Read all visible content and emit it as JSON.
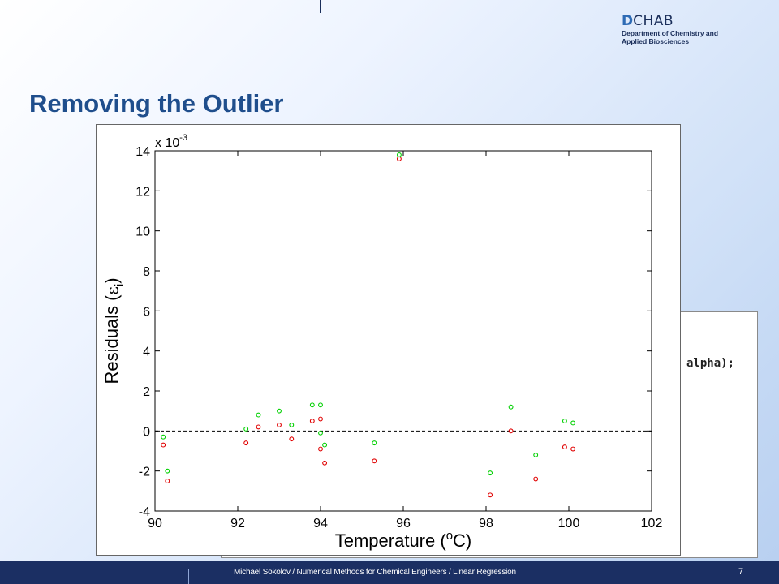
{
  "logo": {
    "letter": "D",
    "name": "CHAB",
    "dept_line1": "Department of Chemistry and",
    "dept_line2": "Applied Biosciences"
  },
  "slide": {
    "title": "Removing the Outlier",
    "code_snippet": "alpha);",
    "footer_text": "Michael Sokolov / Numerical Methods for Chemical Engineers / Linear Regression",
    "page_number": "7"
  },
  "chart_data": {
    "type": "scatter",
    "xlabel": "Temperature (",
    "xlabel_sup": "o",
    "xlabel_unit": "C)",
    "ylabel": "Residuals (",
    "ylabel_symbol": "ε",
    "ylabel_sub": "i",
    "ylabel_close": ")",
    "multiplier_text": "x 10",
    "multiplier_exp": "-3",
    "xlim": [
      90,
      102
    ],
    "ylim": [
      -4,
      14
    ],
    "xticks": [
      90,
      92,
      94,
      96,
      98,
      100,
      102
    ],
    "yticks": [
      -4,
      -2,
      0,
      2,
      4,
      6,
      8,
      10,
      12,
      14
    ],
    "reference_line_y": 0,
    "series": [
      {
        "color": "#e00000",
        "points": [
          {
            "x": 90.2,
            "y": -0.7
          },
          {
            "x": 90.3,
            "y": -2.5
          },
          {
            "x": 92.2,
            "y": -0.6
          },
          {
            "x": 92.5,
            "y": 0.2
          },
          {
            "x": 93.0,
            "y": 0.3
          },
          {
            "x": 93.3,
            "y": -0.4
          },
          {
            "x": 93.8,
            "y": 0.5
          },
          {
            "x": 94.0,
            "y": 0.6
          },
          {
            "x": 94.0,
            "y": -0.9
          },
          {
            "x": 94.1,
            "y": -1.6
          },
          {
            "x": 95.3,
            "y": -1.5
          },
          {
            "x": 95.9,
            "y": 13.6
          },
          {
            "x": 98.1,
            "y": -3.2
          },
          {
            "x": 98.6,
            "y": 0.0
          },
          {
            "x": 99.2,
            "y": -2.4
          },
          {
            "x": 99.9,
            "y": -0.8
          },
          {
            "x": 100.1,
            "y": -0.9
          }
        ]
      },
      {
        "color": "#00d000",
        "points": [
          {
            "x": 90.2,
            "y": -0.3
          },
          {
            "x": 90.3,
            "y": -2.0
          },
          {
            "x": 92.2,
            "y": 0.1
          },
          {
            "x": 92.5,
            "y": 0.8
          },
          {
            "x": 93.0,
            "y": 1.0
          },
          {
            "x": 93.3,
            "y": 0.3
          },
          {
            "x": 93.8,
            "y": 1.3
          },
          {
            "x": 94.0,
            "y": 1.3
          },
          {
            "x": 94.0,
            "y": -0.1
          },
          {
            "x": 94.1,
            "y": -0.7
          },
          {
            "x": 95.3,
            "y": -0.6
          },
          {
            "x": 95.9,
            "y": 13.8
          },
          {
            "x": 98.1,
            "y": -2.1
          },
          {
            "x": 98.6,
            "y": 1.2
          },
          {
            "x": 99.2,
            "y": -1.2
          },
          {
            "x": 99.9,
            "y": 0.5
          },
          {
            "x": 100.1,
            "y": 0.4
          }
        ]
      }
    ]
  }
}
